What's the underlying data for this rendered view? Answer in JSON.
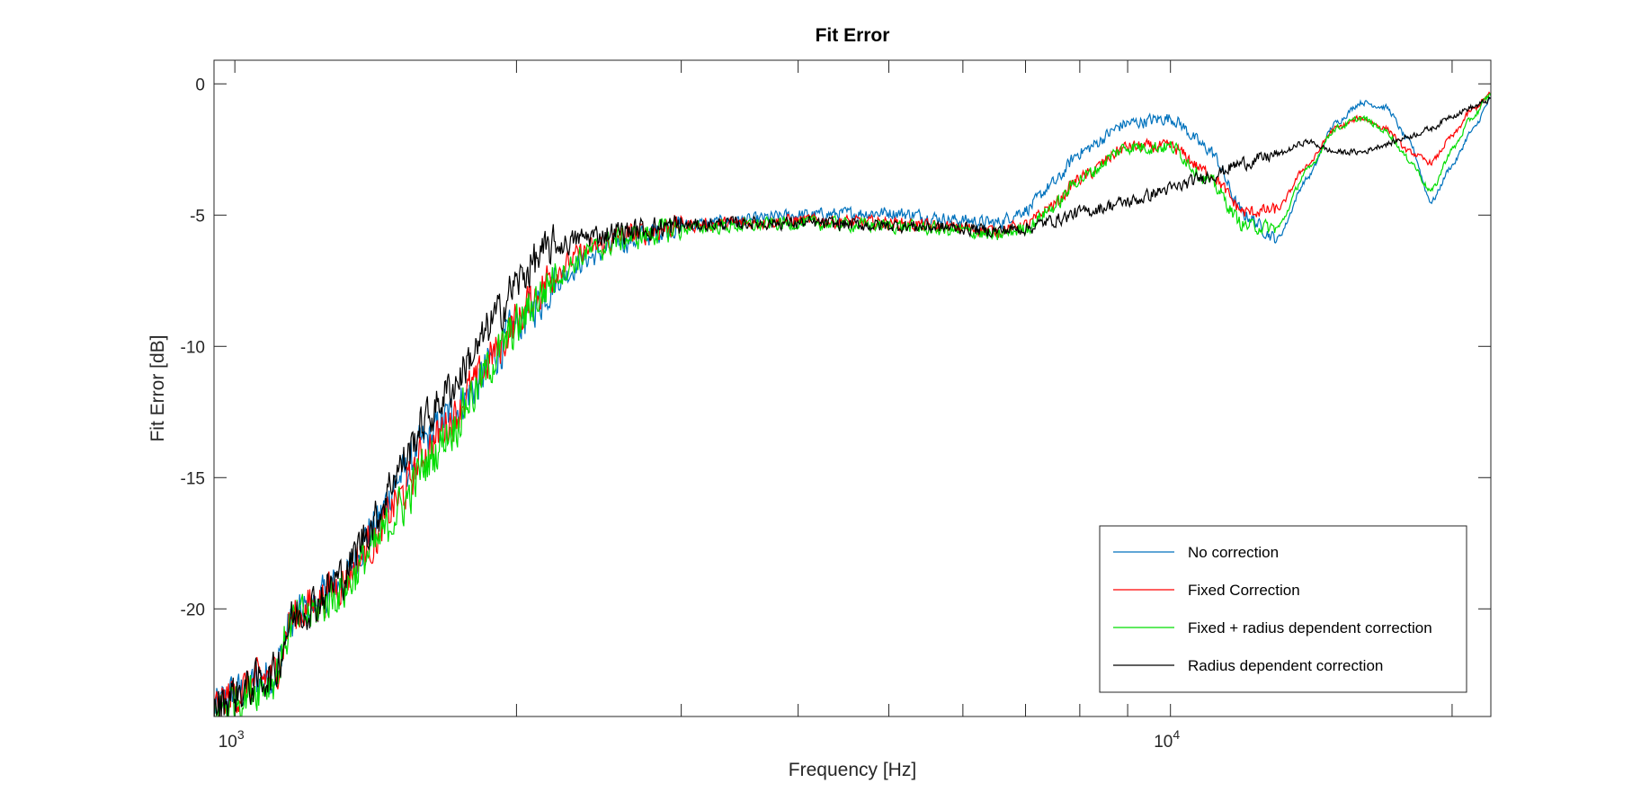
{
  "chart_data": {
    "type": "line",
    "title": "Fit Error",
    "xlabel": "Frequency [Hz]",
    "ylabel": "Fit Error [dB]",
    "xscale": "log",
    "xlim": [
      950,
      22000
    ],
    "ylim": [
      -24.1,
      0.9
    ],
    "yticks": [
      {
        "value": 0,
        "label": "0"
      },
      {
        "value": -5,
        "label": "-5"
      },
      {
        "value": -10,
        "label": "-10"
      },
      {
        "value": -15,
        "label": "-15"
      },
      {
        "value": -20,
        "label": "-20"
      }
    ],
    "xticks_labeled": [
      {
        "value": 1000,
        "base": "10",
        "exp": "3"
      },
      {
        "value": 10000,
        "base": "10",
        "exp": "4"
      }
    ],
    "xticks_minor": [
      2000,
      3000,
      4000,
      5000,
      6000,
      7000,
      8000,
      9000,
      20000
    ],
    "grid": false,
    "legend_position": "bottom-right",
    "series": [
      {
        "name": "No correction",
        "color": "#0072BD",
        "noise": 0.22,
        "x": [
          950,
          1000,
          1100,
          1150,
          1200,
          1300,
          1400,
          1500,
          1600,
          1700,
          1800,
          1900,
          2000,
          2100,
          2200,
          2400,
          2600,
          3000,
          3500,
          4000,
          5000,
          6000,
          6500,
          7000,
          7500,
          8000,
          9000,
          10000,
          11000,
          12000,
          13000,
          14000,
          15000,
          16000,
          17000,
          18000,
          19000,
          20000,
          21000,
          22000
        ],
        "y": [
          -23.8,
          -23.2,
          -22.5,
          -20.5,
          -20.0,
          -19.0,
          -17.0,
          -15.0,
          -13.6,
          -12.6,
          -11.6,
          -10.3,
          -9.2,
          -8.4,
          -7.5,
          -6.6,
          -6.0,
          -5.4,
          -5.2,
          -5.0,
          -4.9,
          -5.2,
          -5.3,
          -4.8,
          -3.8,
          -2.6,
          -1.5,
          -1.3,
          -2.5,
          -5.0,
          -5.9,
          -3.6,
          -1.5,
          -0.7,
          -0.9,
          -2.2,
          -4.5,
          -3.1,
          -1.8,
          -0.6
        ]
      },
      {
        "name": "Fixed Correction",
        "color": "#FF0000",
        "noise": 0.22,
        "x": [
          950,
          1000,
          1100,
          1150,
          1200,
          1300,
          1400,
          1500,
          1600,
          1700,
          1800,
          1900,
          2000,
          2100,
          2200,
          2400,
          2600,
          3000,
          3500,
          4000,
          5000,
          6000,
          6500,
          7000,
          7500,
          8000,
          9000,
          10000,
          11000,
          12000,
          13000,
          14000,
          15000,
          16000,
          17000,
          18000,
          19000,
          20000,
          21000,
          22000
        ],
        "y": [
          -23.8,
          -23.2,
          -22.5,
          -20.4,
          -19.9,
          -19.0,
          -17.5,
          -15.8,
          -14.0,
          -12.8,
          -11.5,
          -10.2,
          -9.0,
          -8.0,
          -7.1,
          -6.3,
          -5.8,
          -5.4,
          -5.3,
          -5.2,
          -5.3,
          -5.5,
          -5.6,
          -5.4,
          -4.6,
          -3.6,
          -2.4,
          -2.4,
          -3.4,
          -4.9,
          -4.8,
          -3.1,
          -1.7,
          -1.3,
          -1.7,
          -2.6,
          -3.0,
          -2.0,
          -1.0,
          -0.4
        ]
      },
      {
        "name": "Fixed + radius dependent correction",
        "color": "#00DD00",
        "noise": 0.24,
        "x": [
          950,
          1000,
          1100,
          1150,
          1200,
          1300,
          1400,
          1500,
          1600,
          1700,
          1800,
          1900,
          2000,
          2100,
          2200,
          2400,
          2600,
          3000,
          3500,
          4000,
          5000,
          6000,
          6500,
          7000,
          7500,
          8000,
          9000,
          10000,
          11000,
          12000,
          13000,
          14000,
          15000,
          16000,
          17000,
          18000,
          19000,
          20000,
          21000,
          22000
        ],
        "y": [
          -24.0,
          -23.4,
          -22.7,
          -20.6,
          -20.2,
          -19.3,
          -17.8,
          -16.2,
          -14.5,
          -13.2,
          -11.8,
          -10.4,
          -9.3,
          -8.2,
          -7.3,
          -6.4,
          -5.9,
          -5.5,
          -5.4,
          -5.3,
          -5.4,
          -5.6,
          -5.8,
          -5.5,
          -4.7,
          -3.6,
          -2.4,
          -2.4,
          -3.7,
          -5.4,
          -5.5,
          -3.3,
          -1.7,
          -1.3,
          -1.8,
          -2.9,
          -4.1,
          -2.5,
          -1.3,
          -0.4
        ]
      },
      {
        "name": "Radius dependent correction",
        "color": "#000000",
        "noise": 0.22,
        "x": [
          950,
          1000,
          1100,
          1150,
          1200,
          1300,
          1400,
          1500,
          1600,
          1700,
          1800,
          1900,
          2000,
          2100,
          2200,
          2400,
          2600,
          3000,
          3500,
          4000,
          5000,
          6000,
          6500,
          7000,
          7500,
          8000,
          9000,
          10000,
          11000,
          12000,
          13000,
          14000,
          15000,
          16000,
          17000,
          18000,
          19000,
          20000,
          21000,
          22000
        ],
        "y": [
          -23.8,
          -23.2,
          -22.5,
          -20.4,
          -19.9,
          -18.8,
          -16.8,
          -14.6,
          -12.8,
          -11.6,
          -10.3,
          -8.9,
          -7.6,
          -6.7,
          -6.2,
          -5.8,
          -5.6,
          -5.4,
          -5.3,
          -5.3,
          -5.4,
          -5.5,
          -5.6,
          -5.5,
          -5.2,
          -4.9,
          -4.5,
          -4.0,
          -3.5,
          -3.0,
          -2.7,
          -2.2,
          -2.6,
          -2.6,
          -2.3,
          -2.0,
          -1.7,
          -1.2,
          -0.9,
          -0.6
        ]
      }
    ]
  }
}
